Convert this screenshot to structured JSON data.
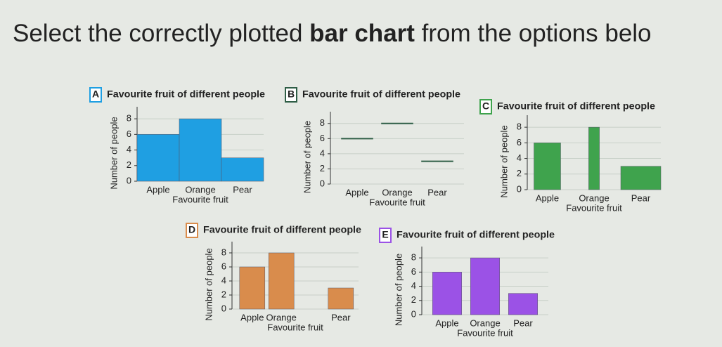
{
  "question": [
    "Select the correctly plotted ",
    "bar chart",
    " from the options belo"
  ],
  "chart_data": [
    {
      "type": "bar",
      "label": "A",
      "title": "Favourite fruit of different people",
      "x_label": "Favourite fruit",
      "y_label": "Number of people",
      "categories": [
        "Apple",
        "Orange",
        "Pear"
      ],
      "values": [
        6,
        8,
        3
      ],
      "color": "#1f9fe2",
      "ylim": [
        0,
        9
      ],
      "yticks": [
        0,
        2,
        4,
        6,
        8
      ],
      "grid": true
    },
    {
      "type": "bar",
      "label": "B",
      "title": "Favourite fruit of different people",
      "x_label": "Favourite fruit",
      "y_label": "Number of people",
      "categories": [
        "Apple",
        "Orange",
        "Pear"
      ],
      "values": [
        6,
        8,
        3
      ],
      "color": "#2f5e46",
      "ylim": [
        0,
        9
      ],
      "yticks": [
        0,
        2,
        4,
        6,
        8
      ],
      "grid": true
    },
    {
      "type": "bar",
      "label": "C",
      "title": "Favourite fruit of different people",
      "x_label": "Favourite fruit",
      "y_label": "Number of people",
      "categories": [
        "Apple",
        "Orange",
        "Pear"
      ],
      "values": [
        6,
        8,
        3
      ],
      "color": "#3fa34d",
      "ylim": [
        0,
        9
      ],
      "yticks": [
        0,
        2,
        4,
        6,
        8
      ],
      "grid": true
    },
    {
      "type": "bar",
      "label": "D",
      "title": "Favourite fruit of different people",
      "x_label": "Favourite fruit",
      "y_label": "Number of people",
      "categories": [
        "Apple",
        "Orange",
        "Pear"
      ],
      "values": [
        6,
        8,
        3
      ],
      "color": "#d98c4c",
      "ylim": [
        0,
        9
      ],
      "yticks": [
        0,
        2,
        4,
        6,
        8
      ],
      "grid": true
    },
    {
      "type": "bar",
      "label": "E",
      "title": "Favourite fruit of different people",
      "x_label": "Favourite fruit",
      "y_label": "Number of people",
      "categories": [
        "Apple",
        "Orange",
        "Pear"
      ],
      "values": [
        6,
        8,
        3
      ],
      "color": "#9b52e6",
      "ylim": [
        0,
        9
      ],
      "yticks": [
        0,
        2,
        4,
        6,
        8
      ],
      "grid": true
    }
  ]
}
